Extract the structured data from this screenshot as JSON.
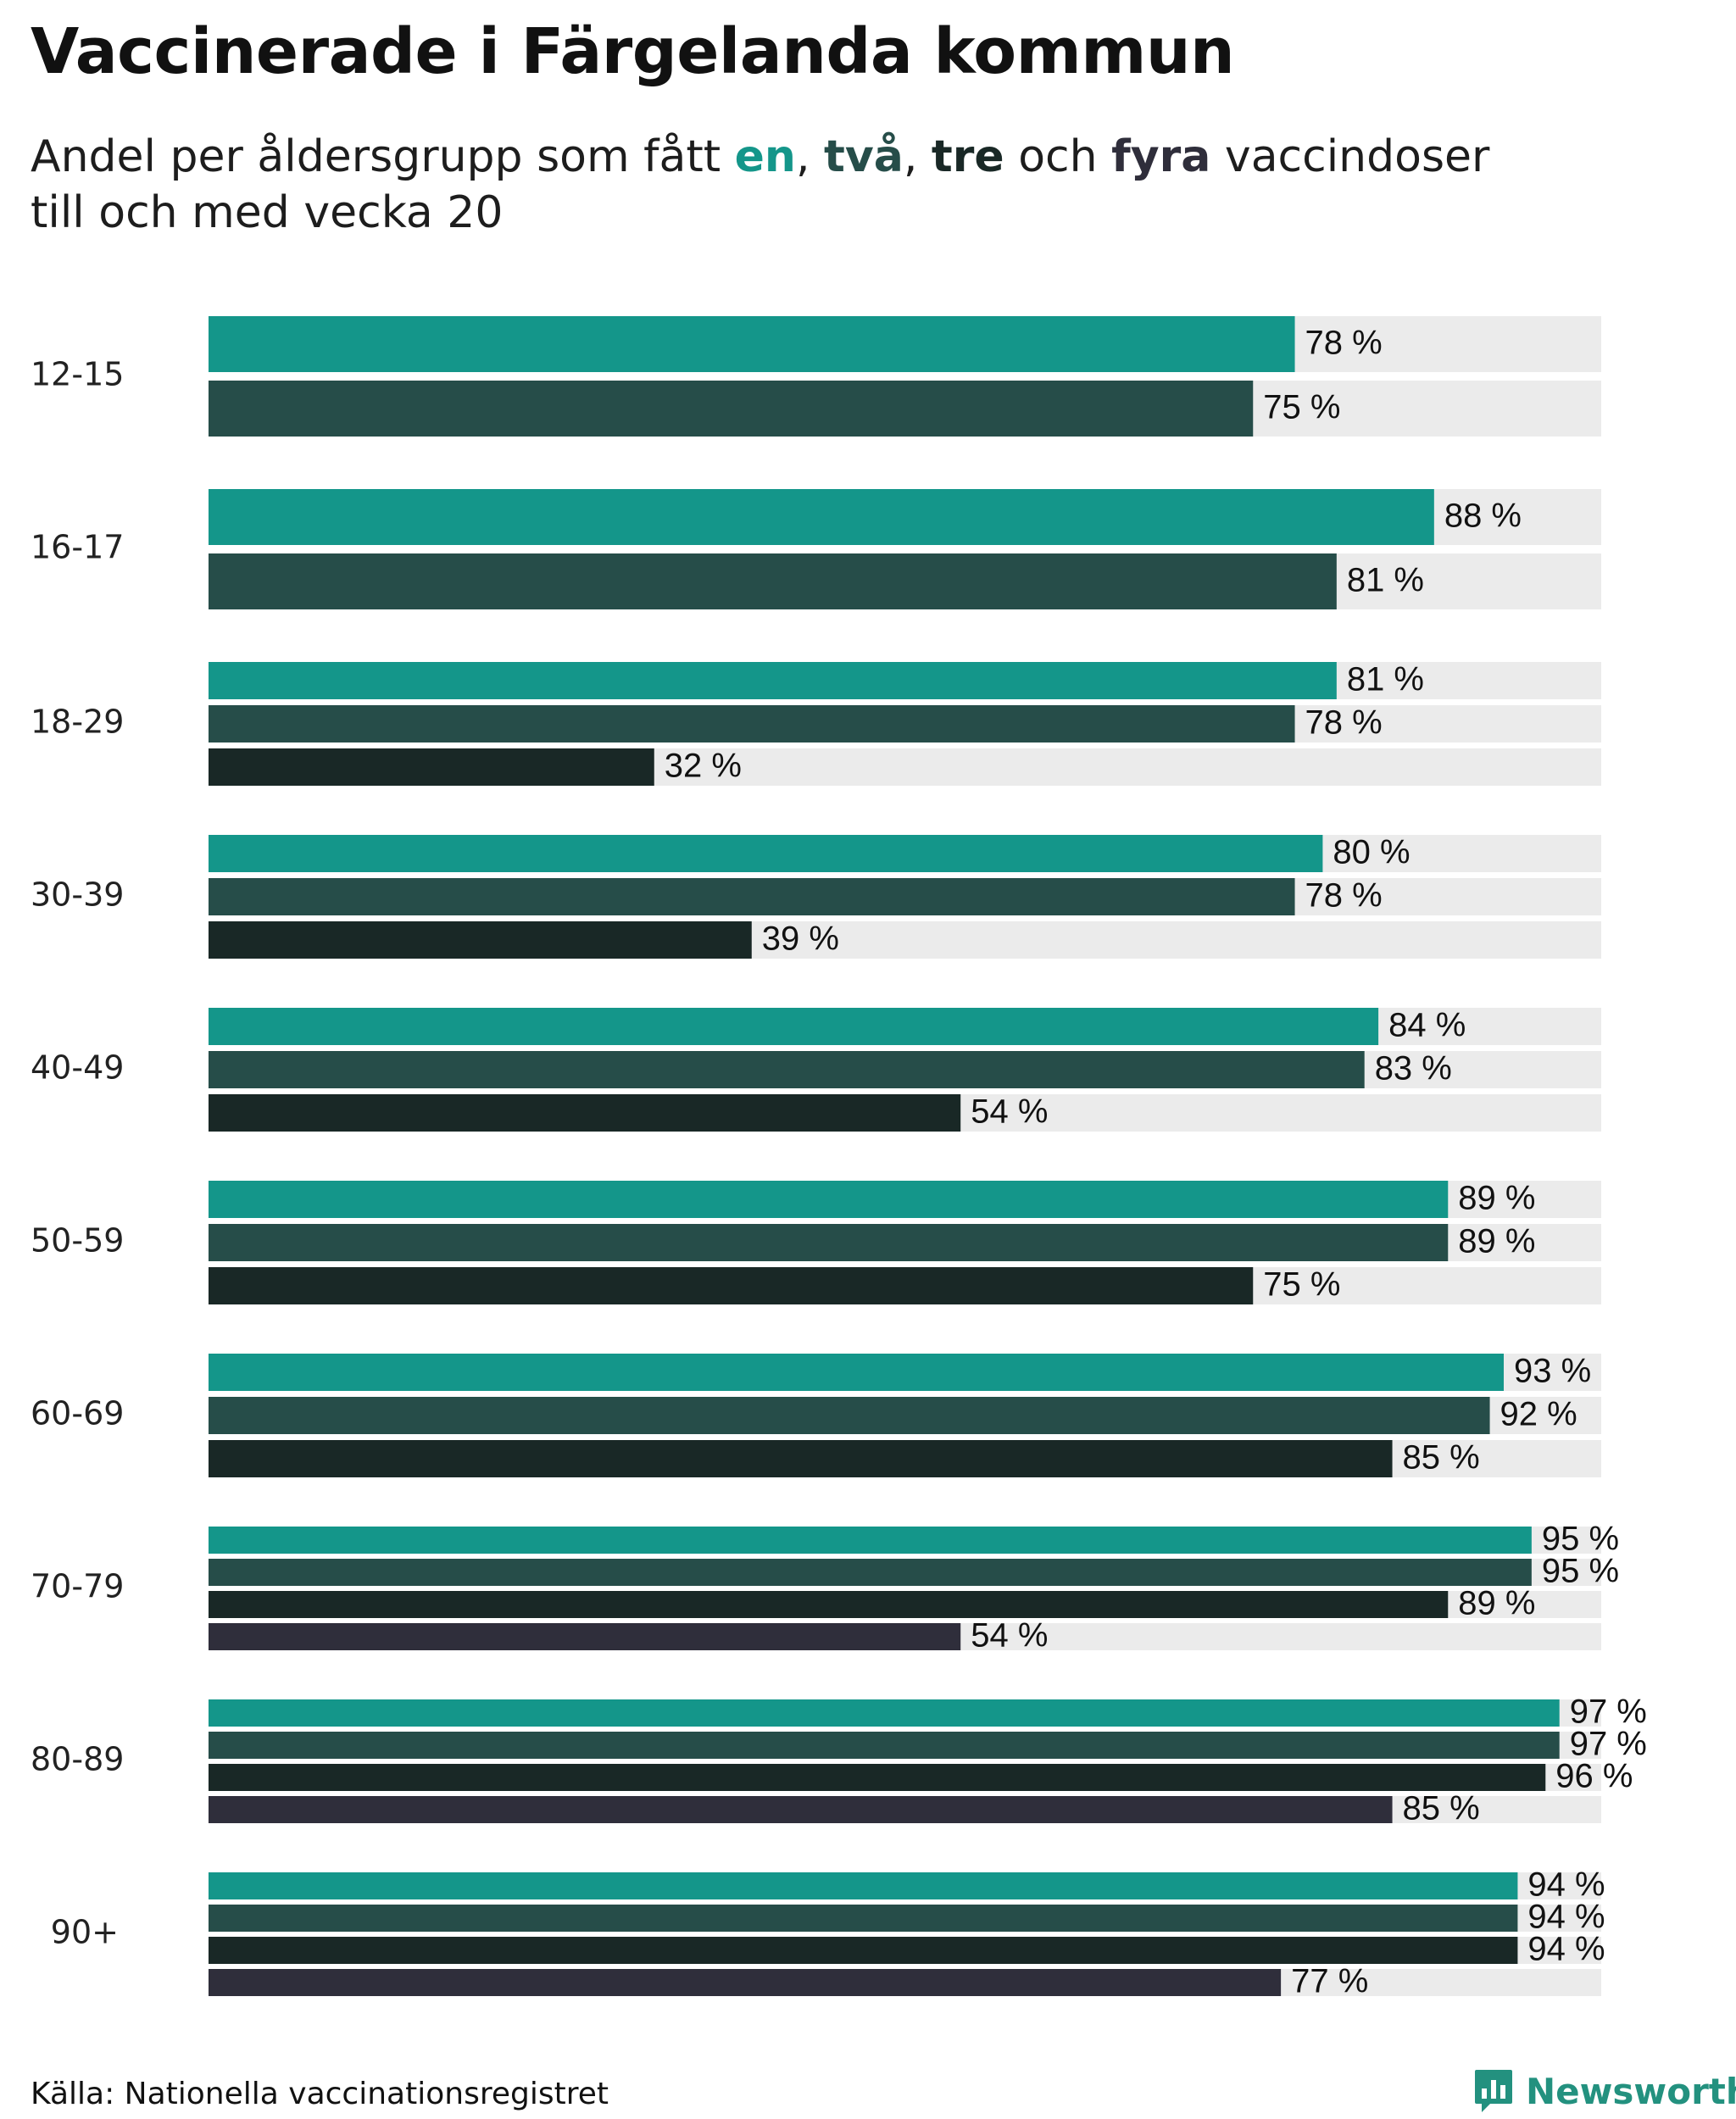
{
  "chart_data": {
    "type": "bar",
    "orientation": "horizontal",
    "title": "Vaccinerade i Färgelanda kommun",
    "subtitle": {
      "prefix": "Andel per åldersgrupp som fått ",
      "k1": "en",
      "sep1": ", ",
      "k2": "två",
      "sep2": ", ",
      "k3": "tre",
      "sep3": " och ",
      "k4": "fyra",
      "suffix": " vaccindoser",
      "line2": "till och med vecka 20"
    },
    "xlim": [
      0,
      100
    ],
    "unit": " %",
    "series": [
      {
        "name": "en",
        "color": "#14968a"
      },
      {
        "name": "två",
        "color": "#264d49"
      },
      {
        "name": "tre",
        "color": "#192826"
      },
      {
        "name": "fyra",
        "color": "#2f2e3b"
      }
    ],
    "background_color": "#ebebeb",
    "groups": [
      {
        "label": "12-15",
        "values": [
          78,
          75
        ]
      },
      {
        "label": "16-17",
        "values": [
          88,
          81
        ]
      },
      {
        "label": "18-29",
        "values": [
          81,
          78,
          32
        ]
      },
      {
        "label": "30-39",
        "values": [
          80,
          78,
          39
        ]
      },
      {
        "label": "40-49",
        "values": [
          84,
          83,
          54
        ]
      },
      {
        "label": "50-59",
        "values": [
          89,
          89,
          75
        ]
      },
      {
        "label": "60-69",
        "values": [
          93,
          92,
          85
        ]
      },
      {
        "label": "70-79",
        "values": [
          95,
          95,
          89,
          54
        ]
      },
      {
        "label": "80-89",
        "values": [
          97,
          97,
          96,
          85
        ]
      },
      {
        "label": "90+",
        "values": [
          94,
          94,
          94,
          77
        ]
      }
    ]
  },
  "footer": {
    "source": "Källa: Nationella vaccinationsregistret",
    "brand": "Newsworthy",
    "brand_icon": "bar-chart-speech-icon"
  }
}
